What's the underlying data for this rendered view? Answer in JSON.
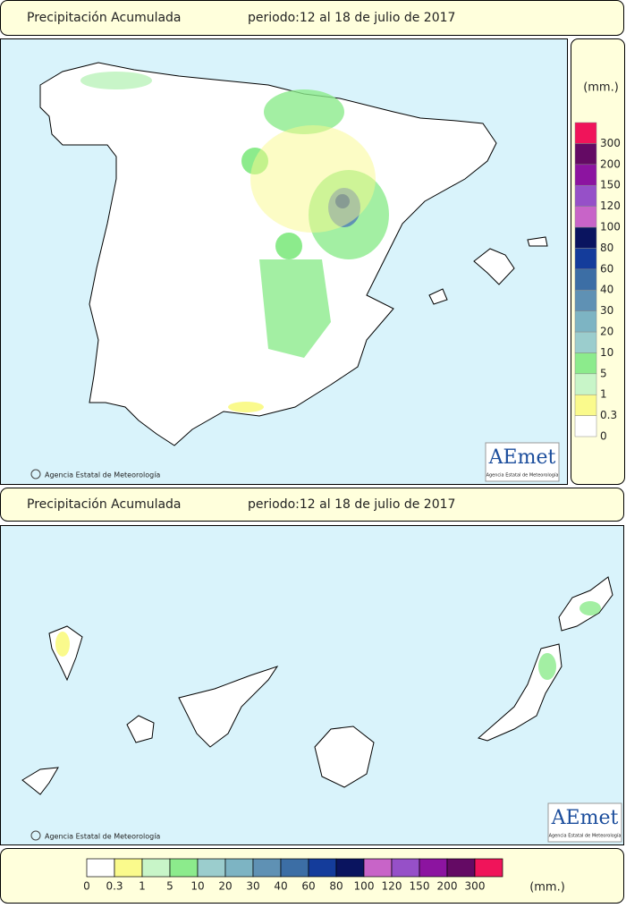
{
  "panels": [
    {
      "title": "Precipitación Acumulada",
      "period": "periodo:12 al 18 de julio de 2017",
      "copyright": "Agencia Estatal de Meteorología",
      "logo": "AEmet",
      "logo_sub": "Agencia Estatal de Meteorología"
    },
    {
      "title": "Precipitación Acumulada",
      "period": "periodo:12 al 18 de julio de 2017",
      "copyright": "Agencia Estatal de Meteorología",
      "logo": "AEmet",
      "logo_sub": "Agencia Estatal de Meteorología"
    }
  ],
  "legend": {
    "unit": "(mm.)",
    "bottom_unit": "(mm.)",
    "items": [
      {
        "label": "0",
        "color": "#ffffff"
      },
      {
        "label": "0.3",
        "color": "#fafa8c"
      },
      {
        "label": "1",
        "color": "#c8f5c8"
      },
      {
        "label": "5",
        "color": "#8ceb8c"
      },
      {
        "label": "10",
        "color": "#9bcdcd"
      },
      {
        "label": "20",
        "color": "#7db4c3"
      },
      {
        "label": "30",
        "color": "#5f91b4"
      },
      {
        "label": "40",
        "color": "#3c6ea5"
      },
      {
        "label": "60",
        "color": "#143c9b"
      },
      {
        "label": "80",
        "color": "#0a145f"
      },
      {
        "label": "100",
        "color": "#c864c8"
      },
      {
        "label": "120",
        "color": "#9650c8"
      },
      {
        "label": "150",
        "color": "#8c14a0"
      },
      {
        "label": "200",
        "color": "#640a64"
      },
      {
        "label": "300",
        "color": "#f0145a"
      }
    ]
  }
}
